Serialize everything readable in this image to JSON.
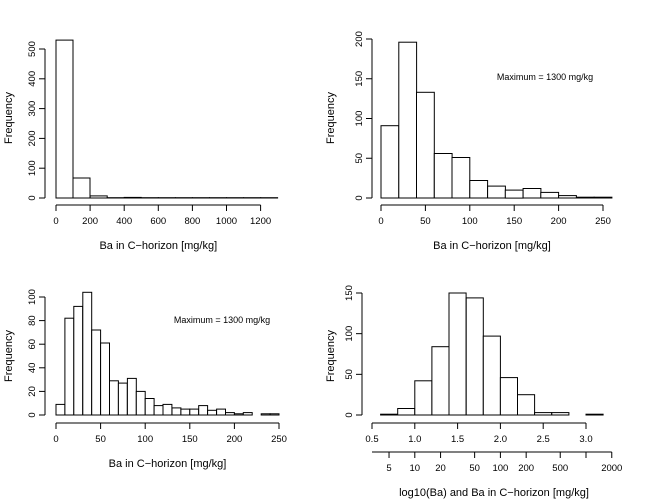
{
  "chart_data": [
    {
      "type": "bar",
      "subtype": "histogram",
      "bin_edges": [
        0,
        100,
        200,
        300,
        400,
        500,
        600,
        700,
        800,
        900,
        1000,
        1100,
        1200,
        1300
      ],
      "values": [
        530,
        67,
        7,
        1,
        2,
        1,
        1,
        1,
        1,
        1,
        1,
        1,
        1
      ],
      "xlabel": "Ba in C−horizon [mg/kg]",
      "ylabel": "Frequency",
      "xlim": [
        0,
        1300
      ],
      "ylim": [
        0,
        530
      ],
      "xticks": [
        0,
        200,
        400,
        600,
        800,
        1000,
        1200
      ],
      "xtick_labels": [
        "0",
        "200",
        "400",
        "600",
        "800",
        "1000",
        "1200"
      ],
      "yticks": [
        0,
        100,
        200,
        300,
        400,
        500
      ],
      "ytick_labels": [
        "0",
        "100",
        "200",
        "300",
        "400",
        "500"
      ],
      "annotation": "",
      "grid": false
    },
    {
      "type": "bar",
      "subtype": "histogram",
      "bin_edges": [
        0,
        20,
        40,
        60,
        80,
        100,
        120,
        140,
        160,
        180,
        200,
        220,
        240,
        260
      ],
      "values": [
        91,
        196,
        133,
        56,
        51,
        22,
        15,
        10,
        12,
        7,
        3,
        1,
        1
      ],
      "xlabel": "Ba in C−horizon [mg/kg]",
      "ylabel": "Frequency",
      "xlim": [
        0,
        260
      ],
      "ylim": [
        0,
        200
      ],
      "xticks": [
        0,
        50,
        100,
        150,
        200,
        250
      ],
      "xtick_labels": [
        "0",
        "50",
        "100",
        "150",
        "200",
        "250"
      ],
      "yticks": [
        0,
        50,
        100,
        150,
        200
      ],
      "ytick_labels": [
        "0",
        "50",
        "100",
        "150",
        "200"
      ],
      "annotation": "Maximum = 1300 mg/kg",
      "grid": false
    },
    {
      "type": "bar",
      "subtype": "histogram",
      "bin_edges": [
        0,
        10,
        20,
        30,
        40,
        50,
        60,
        70,
        80,
        90,
        100,
        110,
        120,
        130,
        140,
        150,
        160,
        170,
        180,
        190,
        200,
        210,
        220,
        230,
        240,
        250,
        260
      ],
      "values": [
        9,
        82,
        92,
        104,
        72,
        61,
        29,
        27,
        31,
        20,
        14,
        8,
        9,
        6,
        5,
        5,
        8,
        4,
        5,
        2,
        1,
        2,
        0,
        1,
        1,
        0
      ],
      "xlabel": "Ba in C−horizon [mg/kg]",
      "ylabel": "Frequency",
      "xlim": [
        0,
        260
      ],
      "ylim": [
        0,
        104
      ],
      "xticks": [
        0,
        50,
        100,
        150,
        200,
        250
      ],
      "xtick_labels": [
        "0",
        "50",
        "100",
        "150",
        "200",
        "250"
      ],
      "yticks": [
        0,
        20,
        40,
        60,
        80,
        100
      ],
      "ytick_labels": [
        "0",
        "20",
        "40",
        "60",
        "80",
        "100"
      ],
      "annotation": "Maximum = 1300 mg/kg",
      "grid": false
    },
    {
      "type": "bar",
      "subtype": "histogram",
      "bin_edges": [
        0.6,
        0.8,
        1.0,
        1.2,
        1.4,
        1.6,
        1.8,
        2.0,
        2.2,
        2.4,
        2.6,
        2.8,
        3.0,
        3.2
      ],
      "values": [
        1,
        8,
        42,
        84,
        150,
        144,
        97,
        46,
        25,
        3,
        3,
        0,
        1
      ],
      "xlabel": "log10(Ba) and Ba in C−horizon [mg/kg]",
      "ylabel": "Frequency",
      "xlim": [
        0.5,
        3.2
      ],
      "ylim": [
        0,
        150
      ],
      "xticks": [
        0.5,
        1.0,
        1.5,
        2.0,
        2.5,
        3.0
      ],
      "xtick_labels": [
        "0.5",
        "1.0",
        "1.5",
        "2.0",
        "2.5",
        "3.0"
      ],
      "yticks": [
        0,
        50,
        100,
        150
      ],
      "ytick_labels": [
        "0",
        "50",
        "100",
        "150"
      ],
      "secondary_xaxis": {
        "ticks_log10": [
          0.69897,
          1,
          1.30103,
          1.69897,
          2,
          2.30103,
          2.69897,
          3,
          3.30103
        ],
        "tick_labels": [
          "5",
          "10",
          "20",
          "50",
          "100",
          "200",
          "500",
          "",
          "2000"
        ]
      },
      "annotation": "",
      "grid": false
    }
  ]
}
